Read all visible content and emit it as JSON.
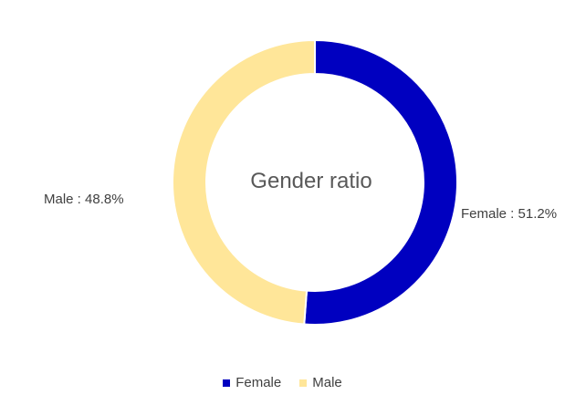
{
  "chart_data": {
    "type": "pie",
    "variant": "donut",
    "center_label": "Gender ratio",
    "slices": [
      {
        "name": "Female",
        "value": 51.2,
        "color": "#0000C0",
        "data_label": "Female : 51.2%"
      },
      {
        "name": "Male",
        "value": 48.8,
        "color": "#FFE699",
        "data_label": "Male : 48.8%"
      }
    ],
    "legend": {
      "placement": "bottom",
      "entries": [
        "Female",
        "Male"
      ]
    }
  }
}
